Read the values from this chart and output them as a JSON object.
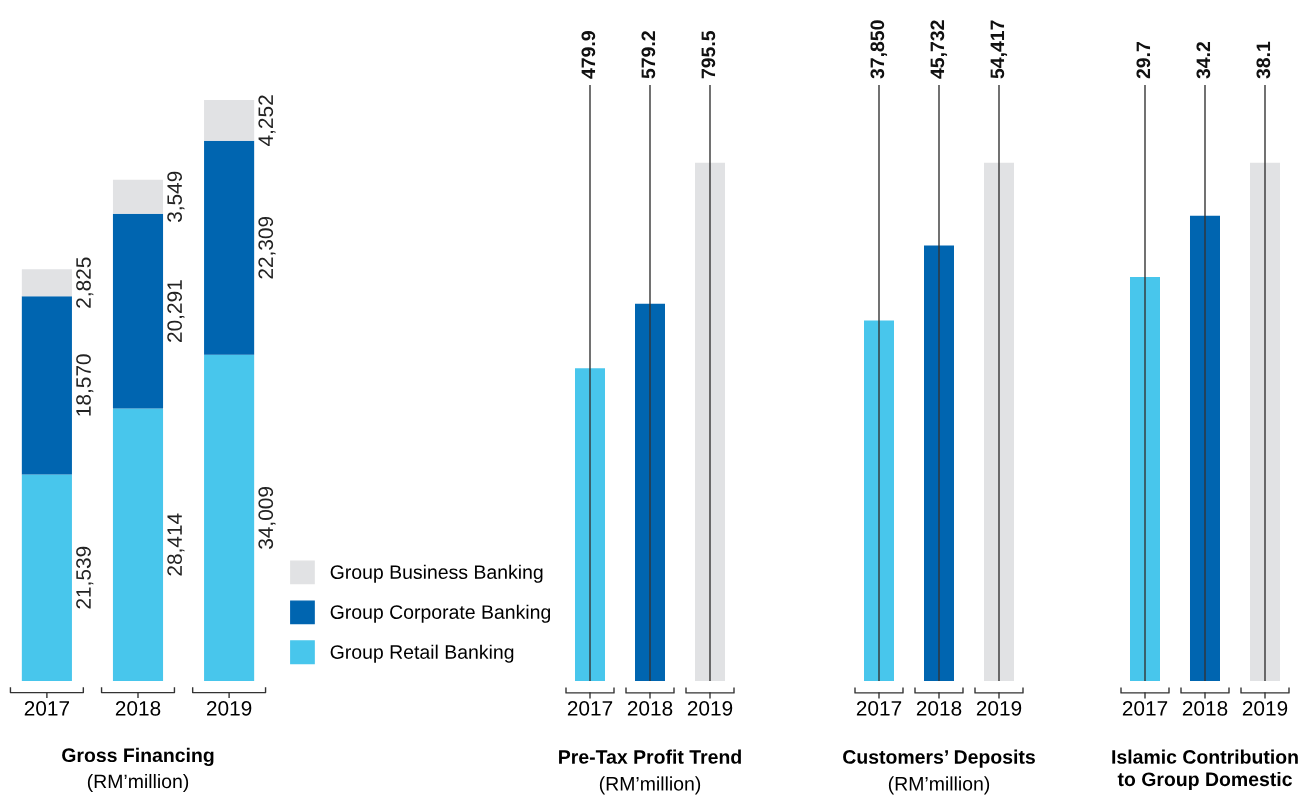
{
  "chart_data": [
    {
      "type": "bar",
      "stacked": true,
      "title": "Gross Financing",
      "subtitle": "(RM’million)",
      "categories": [
        "2017",
        "2018",
        "2019"
      ],
      "legend": "right",
      "series": [
        {
          "name": "Group Retail Banking",
          "color": "#48c6ec",
          "values": [
            21539,
            28414,
            34009
          ],
          "value_labels": [
            "21,539",
            "28,414",
            "34,009"
          ]
        },
        {
          "name": "Group Corporate Banking",
          "color": "#0065b0",
          "values": [
            18570,
            20291,
            22309
          ],
          "value_labels": [
            "18,570",
            "20,291",
            "22,309"
          ]
        },
        {
          "name": "Group Business Banking",
          "color": "#e1e2e4",
          "values": [
            2825,
            3549,
            4252
          ],
          "value_labels": [
            "2,825",
            "3,549",
            "4,252"
          ]
        }
      ]
    },
    {
      "type": "bar",
      "title": "Pre-Tax Profit Trend",
      "subtitle": "(RM’million)",
      "categories": [
        "2017",
        "2018",
        "2019"
      ],
      "values": [
        479.9,
        579.2,
        795.5
      ],
      "colors": [
        "#48c6ec",
        "#0065b0",
        "#e1e2e4"
      ],
      "data_labels": true,
      "grid": "x"
    },
    {
      "type": "bar",
      "title": "Customers’ Deposits",
      "subtitle": "(RM’million)",
      "categories": [
        "2017",
        "2018",
        "2019"
      ],
      "values": [
        37850,
        45732,
        54417
      ],
      "value_labels": [
        "37,850",
        "45,732",
        "54,417"
      ],
      "colors": [
        "#48c6ec",
        "#0065b0",
        "#e1e2e4"
      ],
      "grid": "x"
    },
    {
      "type": "bar",
      "title": "Islamic Contribution\nto Group Domestic",
      "categories": [
        "2017",
        "2018",
        "2019"
      ],
      "values": [
        29.7,
        34.2,
        38.1
      ],
      "colors": [
        "#48c6ec",
        "#0065b0",
        "#e1e2e4"
      ],
      "data_labels": true,
      "grid": "x"
    }
  ]
}
